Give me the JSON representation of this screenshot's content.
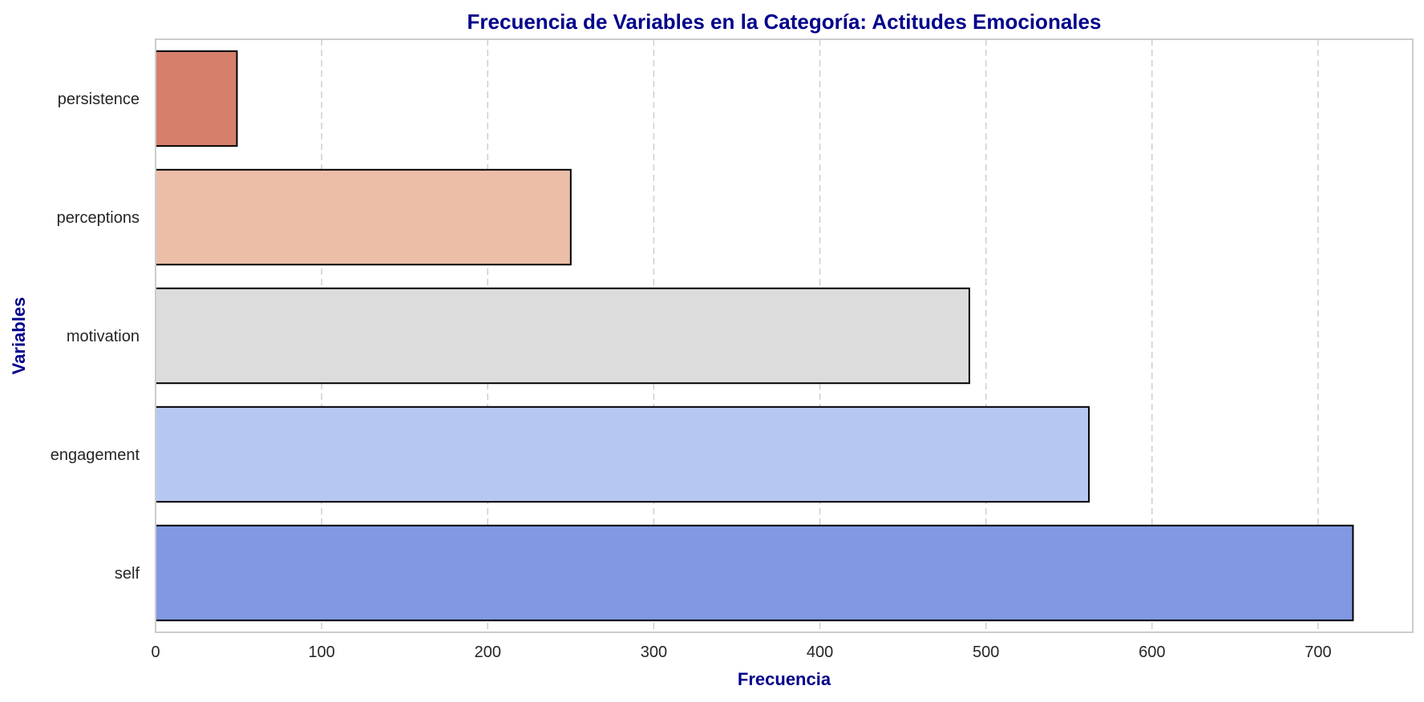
{
  "chart_data": {
    "type": "bar",
    "orientation": "horizontal",
    "title": "Frecuencia de Variables en la Categoría: Actitudes Emocionales",
    "xlabel": "Frecuencia",
    "ylabel": "Variables",
    "categories": [
      "persistence",
      "perceptions",
      "motivation",
      "engagement",
      "self"
    ],
    "values": [
      49,
      250,
      490,
      562,
      721
    ],
    "bar_colors": [
      "#d6806c",
      "#ecbea8",
      "#dcdcdc",
      "#b5c8f1",
      "#8199e2"
    ],
    "xlim": [
      0,
      757
    ],
    "xticks": [
      0,
      100,
      200,
      300,
      400,
      500,
      600,
      700
    ],
    "grid": "vertical dashed",
    "legend": "none",
    "colors": {
      "title": "#00008b",
      "axis_label": "#00008b",
      "bar_edge": "#000000",
      "grid": "#cccccc",
      "frame": "#cccccc"
    }
  }
}
